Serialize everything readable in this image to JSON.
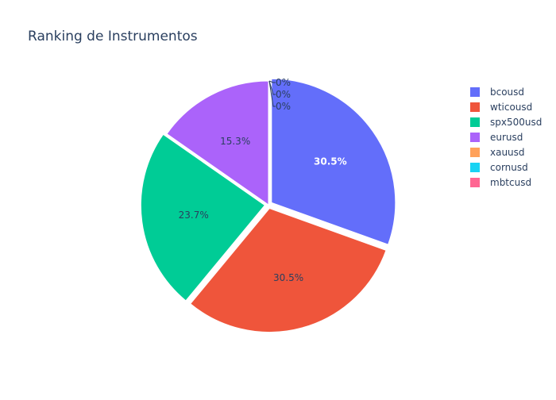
{
  "chart_data": {
    "type": "pie",
    "title": "Ranking de Instrumentos",
    "labels": [
      "bcousd",
      "wticousd",
      "spx500usd",
      "eurusd",
      "xauusd",
      "cornusd",
      "mbtcusd"
    ],
    "values": [
      30.5,
      30.5,
      23.7,
      15.3,
      0,
      0,
      0
    ],
    "display_labels": [
      "30.5%",
      "30.5%",
      "23.7%",
      "15.3%",
      "0%",
      "0%",
      "0%"
    ],
    "colors": [
      "#636efa",
      "#EF553B",
      "#00cc96",
      "#ab63fa",
      "#FFA15A",
      "#19d3f3",
      "#FF6692"
    ],
    "pull": [
      0.03,
      0.03,
      0.03,
      0,
      0,
      0,
      0
    ],
    "legend_position": "top-right",
    "direction": "clockwise",
    "start_angle_deg": 90
  }
}
